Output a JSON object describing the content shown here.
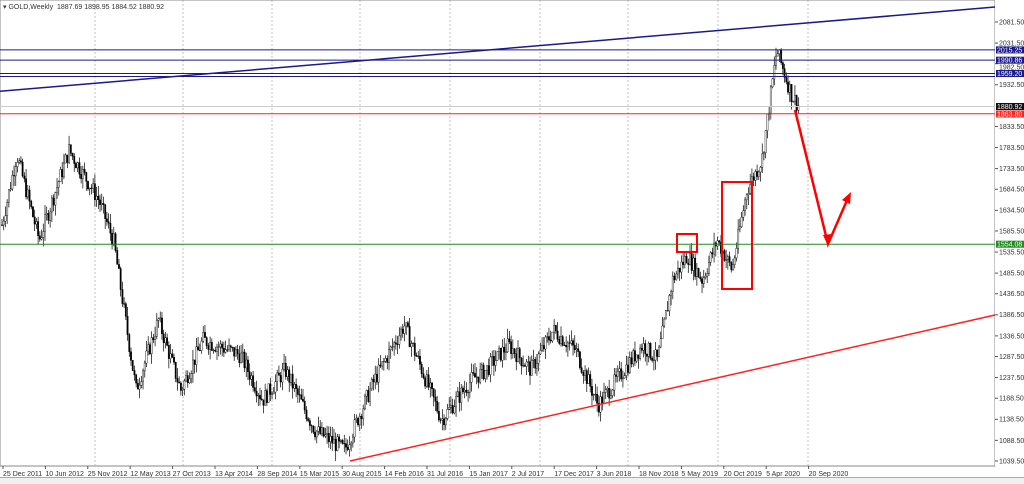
{
  "header": {
    "symbol": "GOLD,Weekly",
    "ohlc": "1887.69 1898.95 1884.52 1880.92"
  },
  "chart_data": {
    "type": "candlestick",
    "title": "GOLD,Weekly",
    "y_ticks": [
      2081.5,
      2031.5,
      1982.5,
      1932.5,
      1833.5,
      1783.5,
      1733.5,
      1684.5,
      1634.5,
      1585.5,
      1535.5,
      1485.5,
      1436.5,
      1386.5,
      1336.5,
      1287.5,
      1237.5,
      1188.5,
      1138.5,
      1088.5,
      1039.5
    ],
    "ylim": [
      1039.5,
      2081.5
    ],
    "x_ticks": [
      "25 Dec 2011",
      "10 Jun 2012",
      "25 Nov 2012",
      "12 May 2013",
      "27 Oct 2013",
      "13 Apr 2014",
      "28 Sep 2014",
      "15 Mar 2015",
      "30 Aug 2015",
      "14 Feb 2016",
      "31 Jul 2016",
      "15 Jan 2017",
      "2 Jul 2017",
      "17 Dec 2017",
      "3 Jun 2018",
      "18 Nov 2018",
      "5 May 2019",
      "20 Oct 2019",
      "5 Apr 2020",
      "20 Sep 2020"
    ],
    "grid": true,
    "price_path": [
      [
        "2011-12",
        1600
      ],
      [
        "2012-02",
        1766
      ],
      [
        "2012-05",
        1564
      ],
      [
        "2012-09",
        1777
      ],
      [
        "2013-01",
        1659
      ],
      [
        "2013-03",
        1560
      ],
      [
        "2013-06",
        1208
      ],
      [
        "2013-09",
        1374
      ],
      [
        "2013-12",
        1208
      ],
      [
        "2014-03",
        1327
      ],
      [
        "2014-08",
        1291
      ],
      [
        "2014-11",
        1184
      ],
      [
        "2015-02",
        1256
      ],
      [
        "2015-06",
        1113
      ],
      [
        "2015-10",
        1066
      ],
      [
        "2016-02",
        1232
      ],
      [
        "2016-06",
        1362
      ],
      [
        "2016-11",
        1137
      ],
      [
        "2017-03",
        1232
      ],
      [
        "2017-05",
        1256
      ],
      [
        "2017-08",
        1315
      ],
      [
        "2017-11",
        1256
      ],
      [
        "2018-02",
        1350
      ],
      [
        "2018-05",
        1303
      ],
      [
        "2018-08",
        1172
      ],
      [
        "2018-11",
        1244
      ],
      [
        "2019-02",
        1315
      ],
      [
        "2019-04",
        1279
      ],
      [
        "2019-06",
        1469
      ],
      [
        "2019-08",
        1528
      ],
      [
        "2019-10",
        1469
      ],
      [
        "2019-12",
        1564
      ],
      [
        "2020-02",
        1493
      ],
      [
        "2020-04",
        1683
      ],
      [
        "2020-06",
        1754
      ],
      [
        "2020-08",
        2015
      ],
      [
        "2020-10",
        1908
      ],
      [
        "2020-11",
        1880.92
      ]
    ],
    "levels": [
      {
        "price": 2015.25,
        "label": "2015.25",
        "color": "#1a1a8c"
      },
      {
        "price": 1990.86,
        "label": "1990.86",
        "color": "#1a1a8c"
      },
      {
        "price": 1959.2,
        "label": "1959.20",
        "color": "#1a1a8c"
      },
      {
        "price": 1952.0,
        "label": "",
        "color": "#1a1a8c"
      },
      {
        "price": 1880.92,
        "label": "1880.92",
        "color": "#111111"
      },
      {
        "price": 1863.8,
        "label": "1863.80",
        "color": "#ff2020"
      },
      {
        "price": 1554.08,
        "label": "1554.08",
        "color": "#1e8c1e"
      }
    ],
    "colors": {
      "trend_resistance": "#1a1a8c",
      "trend_support": "#ff2020",
      "annotation": "#ff0000",
      "candle": "#000000",
      "grid": "#999999"
    }
  }
}
